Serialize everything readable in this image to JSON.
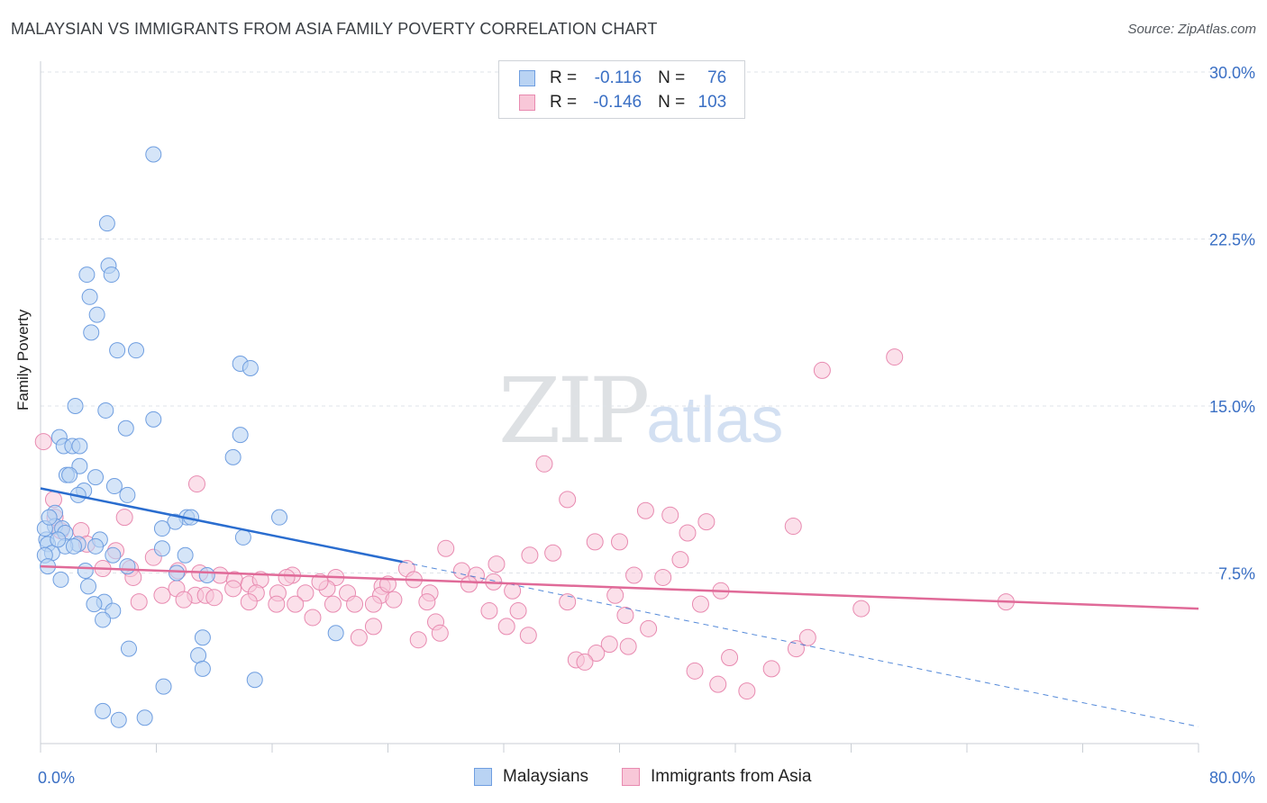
{
  "title": "MALAYSIAN VS IMMIGRANTS FROM ASIA FAMILY POVERTY CORRELATION CHART",
  "source": "Source: ZipAtlas.com",
  "watermark": {
    "zip": "ZIP",
    "atlas": "atlas"
  },
  "legend": [
    {
      "swatch_color": "#b9d3f3",
      "border_color": "#6f9ee0",
      "r_label": "R =",
      "r_value": "-0.116",
      "n_label": "N =",
      "n_value": "76"
    },
    {
      "swatch_color": "#f8c7d8",
      "border_color": "#e88ab0",
      "r_label": "R =",
      "r_value": "-0.146",
      "n_label": "N =",
      "n_value": "103"
    }
  ],
  "bottom_legend": [
    {
      "label": "Malaysians",
      "swatch_color": "#b9d3f3",
      "border_color": "#6f9ee0"
    },
    {
      "label": "Immigrants from Asia",
      "swatch_color": "#f8c7d8",
      "border_color": "#e88ab0"
    }
  ],
  "chart_data": {
    "type": "scatter",
    "title": "MALAYSIAN VS IMMIGRANTS FROM ASIA FAMILY POVERTY CORRELATION CHART",
    "xlabel": "",
    "ylabel": "Family Poverty",
    "xlim": [
      0,
      80
    ],
    "ylim": [
      0,
      30
    ],
    "x_tick_labels": [
      "0.0%",
      "80.0%"
    ],
    "y_ticks": [
      7.5,
      15.0,
      22.5,
      30.0
    ],
    "y_tick_labels": [
      "7.5%",
      "15.0%",
      "22.5%",
      "30.0%"
    ],
    "grid": true,
    "colors": {
      "malaysians_fill": "#b9d3f3",
      "malaysians_stroke": "#6f9ee0",
      "malaysians_line": "#2a6dcf",
      "asia_fill": "#f8c7d8",
      "asia_stroke": "#e88ab0",
      "asia_line": "#e06a98",
      "tick_text": "#3a6fc4",
      "grid": "#dfe3e8"
    },
    "series": [
      {
        "name": "Malaysians",
        "trend": {
          "x": [
            0,
            25
          ],
          "y": [
            11.3,
            8.0
          ],
          "dashed_to": [
            80,
            0.6
          ]
        },
        "points": [
          [
            7.8,
            26.3
          ],
          [
            4.6,
            23.2
          ],
          [
            4.7,
            21.3
          ],
          [
            3.2,
            20.9
          ],
          [
            4.9,
            20.9
          ],
          [
            3.4,
            19.9
          ],
          [
            3.9,
            19.1
          ],
          [
            3.5,
            18.3
          ],
          [
            5.3,
            17.5
          ],
          [
            6.6,
            17.5
          ],
          [
            13.8,
            16.9
          ],
          [
            14.5,
            16.7
          ],
          [
            2.4,
            15.0
          ],
          [
            4.5,
            14.8
          ],
          [
            7.8,
            14.4
          ],
          [
            5.9,
            14.0
          ],
          [
            13.8,
            13.7
          ],
          [
            1.3,
            13.6
          ],
          [
            1.6,
            13.2
          ],
          [
            2.2,
            13.2
          ],
          [
            2.7,
            13.2
          ],
          [
            13.3,
            12.7
          ],
          [
            2.7,
            12.3
          ],
          [
            1.8,
            11.9
          ],
          [
            2.0,
            11.9
          ],
          [
            3.8,
            11.8
          ],
          [
            5.1,
            11.4
          ],
          [
            3.0,
            11.2
          ],
          [
            2.6,
            11.0
          ],
          [
            6.0,
            11.0
          ],
          [
            1.0,
            10.2
          ],
          [
            10.1,
            10.0
          ],
          [
            10.4,
            10.0
          ],
          [
            16.5,
            10.0
          ],
          [
            9.3,
            9.8
          ],
          [
            1.0,
            9.6
          ],
          [
            1.5,
            9.5
          ],
          [
            8.4,
            9.5
          ],
          [
            1.7,
            9.3
          ],
          [
            0.4,
            9.0
          ],
          [
            4.1,
            9.0
          ],
          [
            14.0,
            9.1
          ],
          [
            0.5,
            8.8
          ],
          [
            2.6,
            8.8
          ],
          [
            1.7,
            8.7
          ],
          [
            2.3,
            8.7
          ],
          [
            3.8,
            8.7
          ],
          [
            8.4,
            8.6
          ],
          [
            0.8,
            8.4
          ],
          [
            0.3,
            8.3
          ],
          [
            5.0,
            8.3
          ],
          [
            10.0,
            8.3
          ],
          [
            6.0,
            7.8
          ],
          [
            0.5,
            7.8
          ],
          [
            9.4,
            7.5
          ],
          [
            3.1,
            7.6
          ],
          [
            11.5,
            7.4
          ],
          [
            1.4,
            7.2
          ],
          [
            3.3,
            6.9
          ],
          [
            4.4,
            6.2
          ],
          [
            3.7,
            6.1
          ],
          [
            5.0,
            5.8
          ],
          [
            4.3,
            5.4
          ],
          [
            20.4,
            4.8
          ],
          [
            11.2,
            4.6
          ],
          [
            6.1,
            4.1
          ],
          [
            10.9,
            3.8
          ],
          [
            11.2,
            3.2
          ],
          [
            14.8,
            2.7
          ],
          [
            8.5,
            2.4
          ],
          [
            4.3,
            1.3
          ],
          [
            7.2,
            1.0
          ],
          [
            5.4,
            0.9
          ],
          [
            0.3,
            9.5
          ],
          [
            0.6,
            10.0
          ],
          [
            1.2,
            9.0
          ]
        ]
      },
      {
        "name": "Immigrants from Asia",
        "trend": {
          "x": [
            0,
            80
          ],
          "y": [
            7.8,
            5.9
          ]
        },
        "points": [
          [
            59.0,
            17.2
          ],
          [
            54.0,
            16.6
          ],
          [
            0.2,
            13.4
          ],
          [
            34.8,
            12.4
          ],
          [
            10.8,
            11.5
          ],
          [
            0.9,
            10.8
          ],
          [
            36.4,
            10.8
          ],
          [
            1.0,
            10.0
          ],
          [
            5.8,
            10.0
          ],
          [
            41.8,
            10.3
          ],
          [
            43.5,
            10.1
          ],
          [
            46.0,
            9.8
          ],
          [
            52.0,
            9.6
          ],
          [
            1.4,
            9.4
          ],
          [
            2.8,
            9.4
          ],
          [
            44.7,
            9.3
          ],
          [
            38.3,
            8.9
          ],
          [
            40.0,
            8.9
          ],
          [
            3.2,
            8.8
          ],
          [
            5.2,
            8.5
          ],
          [
            28.0,
            8.6
          ],
          [
            33.8,
            8.3
          ],
          [
            35.4,
            8.4
          ],
          [
            7.8,
            8.2
          ],
          [
            44.2,
            8.1
          ],
          [
            31.5,
            7.9
          ],
          [
            4.3,
            7.7
          ],
          [
            6.2,
            7.7
          ],
          [
            25.3,
            7.7
          ],
          [
            9.5,
            7.6
          ],
          [
            29.1,
            7.6
          ],
          [
            30.1,
            7.4
          ],
          [
            11.0,
            7.5
          ],
          [
            12.4,
            7.4
          ],
          [
            6.4,
            7.3
          ],
          [
            17.4,
            7.4
          ],
          [
            20.4,
            7.3
          ],
          [
            25.8,
            7.2
          ],
          [
            29.6,
            7.0
          ],
          [
            13.4,
            7.2
          ],
          [
            14.4,
            7.0
          ],
          [
            15.2,
            7.2
          ],
          [
            17.0,
            7.3
          ],
          [
            31.3,
            7.1
          ],
          [
            43.0,
            7.3
          ],
          [
            9.4,
            6.8
          ],
          [
            10.7,
            6.5
          ],
          [
            23.6,
            6.9
          ],
          [
            26.9,
            6.6
          ],
          [
            13.3,
            6.8
          ],
          [
            14.9,
            6.6
          ],
          [
            16.4,
            6.6
          ],
          [
            18.3,
            6.6
          ],
          [
            19.8,
            6.8
          ],
          [
            21.2,
            6.6
          ],
          [
            23.5,
            6.5
          ],
          [
            32.6,
            6.7
          ],
          [
            39.7,
            6.5
          ],
          [
            47.0,
            6.7
          ],
          [
            6.8,
            6.2
          ],
          [
            9.9,
            6.3
          ],
          [
            11.4,
            6.5
          ],
          [
            14.4,
            6.2
          ],
          [
            16.3,
            6.1
          ],
          [
            17.6,
            6.1
          ],
          [
            20.2,
            6.1
          ],
          [
            21.7,
            6.1
          ],
          [
            23.0,
            6.1
          ],
          [
            24.4,
            6.3
          ],
          [
            26.7,
            6.2
          ],
          [
            36.4,
            6.2
          ],
          [
            45.6,
            6.1
          ],
          [
            66.7,
            6.2
          ],
          [
            56.7,
            5.9
          ],
          [
            31.0,
            5.8
          ],
          [
            33.0,
            5.8
          ],
          [
            40.4,
            5.6
          ],
          [
            18.8,
            5.5
          ],
          [
            27.3,
            5.3
          ],
          [
            32.2,
            5.1
          ],
          [
            23.0,
            5.1
          ],
          [
            42.0,
            5.0
          ],
          [
            27.6,
            4.8
          ],
          [
            33.7,
            4.7
          ],
          [
            22.0,
            4.6
          ],
          [
            26.1,
            4.5
          ],
          [
            53.0,
            4.6
          ],
          [
            39.3,
            4.3
          ],
          [
            52.2,
            4.1
          ],
          [
            38.4,
            3.9
          ],
          [
            37.0,
            3.6
          ],
          [
            37.6,
            3.5
          ],
          [
            47.6,
            3.7
          ],
          [
            50.5,
            3.2
          ],
          [
            45.2,
            3.1
          ],
          [
            46.8,
            2.5
          ],
          [
            48.8,
            2.2
          ],
          [
            40.6,
            4.2
          ],
          [
            8.4,
            6.5
          ],
          [
            12.0,
            6.4
          ],
          [
            19.3,
            7.1
          ],
          [
            24.0,
            7.0
          ],
          [
            41.0,
            7.4
          ]
        ]
      }
    ]
  },
  "axis": {
    "x_left_label": "0.0%",
    "x_right_label": "80.0%"
  }
}
